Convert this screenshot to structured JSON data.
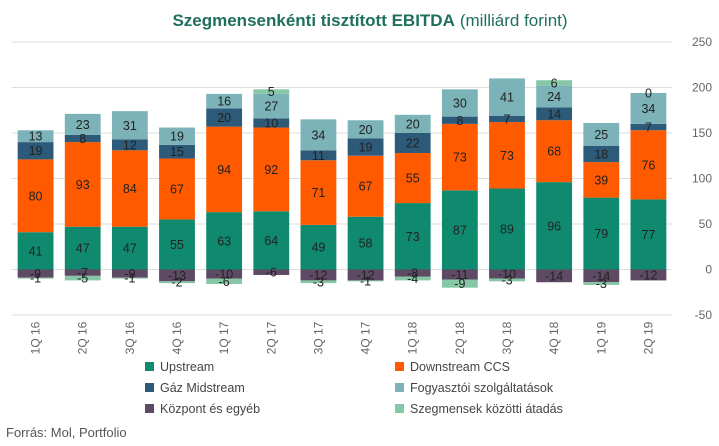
{
  "chart_data": {
    "type": "bar",
    "stacked": true,
    "title": "Szegmensenkénti tisztított EBITDA",
    "title_unit": "(milliárd forint)",
    "categories": [
      "1Q 16",
      "2Q 16",
      "3Q 16",
      "4Q 16",
      "1Q 17",
      "2Q 17",
      "3Q 17",
      "4Q 17",
      "1Q 18",
      "2Q 18",
      "3Q 18",
      "4Q 18",
      "1Q 19",
      "2Q 19"
    ],
    "ylim": [
      -50,
      250
    ],
    "yticks": [
      -50,
      0,
      50,
      100,
      150,
      200,
      250
    ],
    "grid": true,
    "legend_position": "bottom",
    "series": [
      {
        "name": "Upstream",
        "color": "#0f8a6e",
        "values": [
          41,
          47,
          47,
          55,
          63,
          64,
          49,
          58,
          73,
          87,
          89,
          96,
          79,
          77
        ]
      },
      {
        "name": "Downstream CCS",
        "color": "#ff5a00",
        "values": [
          80,
          93,
          84,
          67,
          94,
          92,
          71,
          67,
          55,
          73,
          73,
          68,
          39,
          76
        ]
      },
      {
        "name": "Gáz Midstream",
        "color": "#2e5a7a",
        "values": [
          19,
          8,
          12,
          15,
          20,
          10,
          11,
          19,
          22,
          8,
          7,
          14,
          18,
          7
        ]
      },
      {
        "name": "Fogyasztói szolgáltatások",
        "color": "#7bb3b8",
        "values": [
          13,
          23,
          31,
          19,
          16,
          27,
          34,
          20,
          20,
          30,
          41,
          24,
          25,
          34
        ]
      },
      {
        "name": "Központ és egyéb",
        "color": "#5e4a64",
        "values": [
          -9,
          -7,
          -9,
          -13,
          -10,
          -6,
          -12,
          -12,
          -8,
          -11,
          -10,
          -14,
          -14,
          -12
        ]
      },
      {
        "name": "Szegmensek közötti átadás",
        "color": "#86c8a6",
        "values": [
          -1,
          -5,
          -1,
          -2,
          -6,
          5,
          -3,
          -1,
          -4,
          -9,
          -3,
          6,
          -3,
          0
        ]
      }
    ]
  },
  "source": "Forrás: Mol, Portfolio"
}
